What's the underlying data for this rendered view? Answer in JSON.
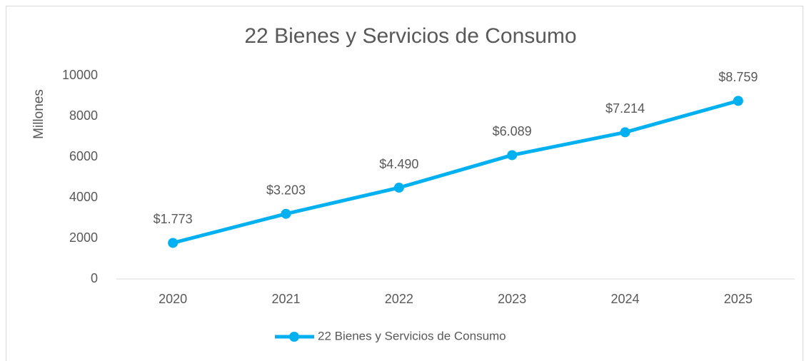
{
  "chart_data": {
    "type": "line",
    "title": "22 Bienes y Servicios de Consumo",
    "y_label": "Millones",
    "categories": [
      "2020",
      "2021",
      "2022",
      "2023",
      "2024",
      "2025"
    ],
    "series": [
      {
        "name": "22 Bienes y Servicios de Consumo",
        "color": "#00b0f0",
        "values": [
          1773,
          3203,
          4490,
          6089,
          7214,
          8759
        ],
        "value_labels": [
          "$1.773",
          "$3.203",
          "$4.490",
          "$6.089",
          "$7.214",
          "$8.759"
        ]
      }
    ],
    "ylim": [
      0,
      10000
    ],
    "yticks": [
      0,
      2000,
      4000,
      6000,
      8000,
      10000
    ],
    "grid": false,
    "legend": "bottom"
  }
}
